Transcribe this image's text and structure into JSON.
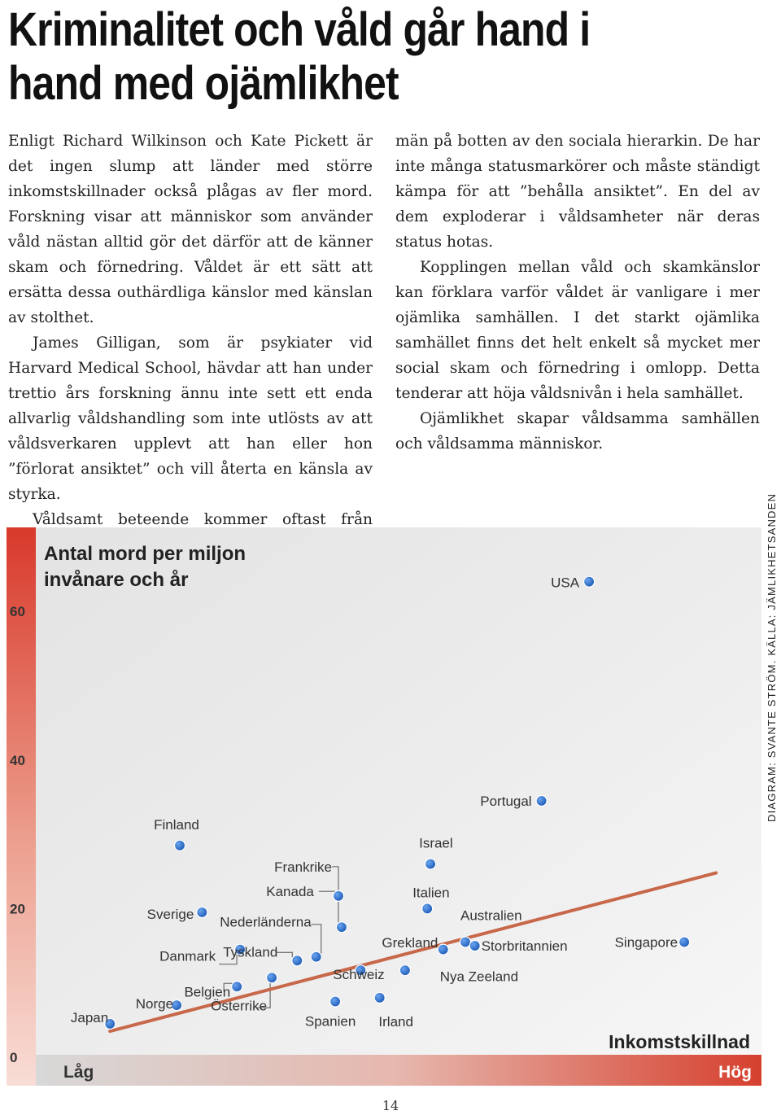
{
  "headline": "Kriminalitet och våld går hand i hand med ojämlikhet",
  "article": {
    "left_paragraphs": [
      "Enligt Richard Wilkinson och Kate Pickett är det ingen slump att länder med större inkomstskillnader också plågas av fler mord. Forskning visar att människor som använder våld nästan alltid gör det därför att de känner skam och förnedring. Våldet är ett sätt att ersätta dessa outhärdliga känslor med känslan av stolthet.",
      "James Gilligan, som är psykiater vid Harvard Medical School, hävdar att han under trettio års forskning ännu inte sett ett enda allvarlig våldshandling som inte utlösts av att våldsverkaren upplevt att han eller hon ”förlorat ansiktet” och vill återta en känsla av styrka.",
      "Våldsamt beteende kommer oftast från unga"
    ],
    "right_paragraphs": [
      "män på botten av den sociala hierarkin. De har inte många statusmarkörer och måste ständigt kämpa för att ”behålla ansiktet”. En del av dem exploderar i våldsamheter när deras status hotas.",
      "Kopplingen mellan våld och skamkänslor kan förklara varför våldet är vanligare i mer ojämlika samhällen. I det starkt ojämlika samhället finns det helt enkelt så mycket mer social skam och förnedring i omlopp. Detta tenderar att höja våldsnivån i hela samhället.",
      "Ojämlikhet skapar våldsamma samhällen och våldsamma människor."
    ]
  },
  "chart_data": {
    "type": "scatter",
    "title": "Antal mord per miljon invånare och år",
    "title_lines": [
      "Antal mord per miljon",
      "invånare och år"
    ],
    "xlabel": "Inkomstskillnad",
    "x_low_label": "Låg",
    "x_high_label": "Hög",
    "ylim": [
      0,
      70
    ],
    "yticks": [
      0,
      20,
      40,
      60
    ],
    "grid": false,
    "colors": {
      "point": "#2166c4",
      "trend": "#c8684a",
      "y_scale_red": "#d8392b",
      "x_scale_red": "#d6402e"
    },
    "trend": {
      "x": [
        0.4,
        9.95
      ],
      "y": [
        3.5,
        24.8
      ]
    },
    "points": [
      {
        "label": "Japan",
        "x": 0.4,
        "y": 4.5
      },
      {
        "label": "Norge",
        "x": 1.45,
        "y": 7.0
      },
      {
        "label": "Finland",
        "x": 1.5,
        "y": 28.5
      },
      {
        "label": "Sverige",
        "x": 1.85,
        "y": 19.5
      },
      {
        "label": "Belgien",
        "x": 2.4,
        "y": 9.5
      },
      {
        "label": "Danmark",
        "x": 2.45,
        "y": 14.5
      },
      {
        "label": "Österrike",
        "x": 2.95,
        "y": 10.7
      },
      {
        "label": "Tyskland",
        "x": 3.35,
        "y": 13.0
      },
      {
        "label": "Nederländerna",
        "x": 3.65,
        "y": 13.5
      },
      {
        "label": "Kanada",
        "x": 4.05,
        "y": 17.5
      },
      {
        "label": "Frankrike",
        "x": 4.0,
        "y": 21.7
      },
      {
        "label": "Spanien",
        "x": 3.95,
        "y": 7.5
      },
      {
        "label": "Schweiz",
        "x": 4.35,
        "y": 11.7
      },
      {
        "label": "Irland",
        "x": 4.65,
        "y": 8.0
      },
      {
        "label": "Grekland",
        "x": 5.05,
        "y": 11.7
      },
      {
        "label": "Italien",
        "x": 5.4,
        "y": 20.0
      },
      {
        "label": "Israel",
        "x": 5.45,
        "y": 26.0
      },
      {
        "label": "Nya Zeeland",
        "x": 5.65,
        "y": 14.5
      },
      {
        "label": "Australien",
        "x": 6.0,
        "y": 15.5
      },
      {
        "label": "Storbritannien",
        "x": 6.15,
        "y": 15.0
      },
      {
        "label": "Portugal",
        "x": 7.2,
        "y": 34.5
      },
      {
        "label": "USA",
        "x": 7.95,
        "y": 64.0
      },
      {
        "label": "Singapore",
        "x": 9.45,
        "y": 15.5
      }
    ]
  },
  "credit": "DIAGRAM: SVANTE STRÖM. KÄLLA: JÄMLIKHETSANDEN",
  "page_number": "14"
}
